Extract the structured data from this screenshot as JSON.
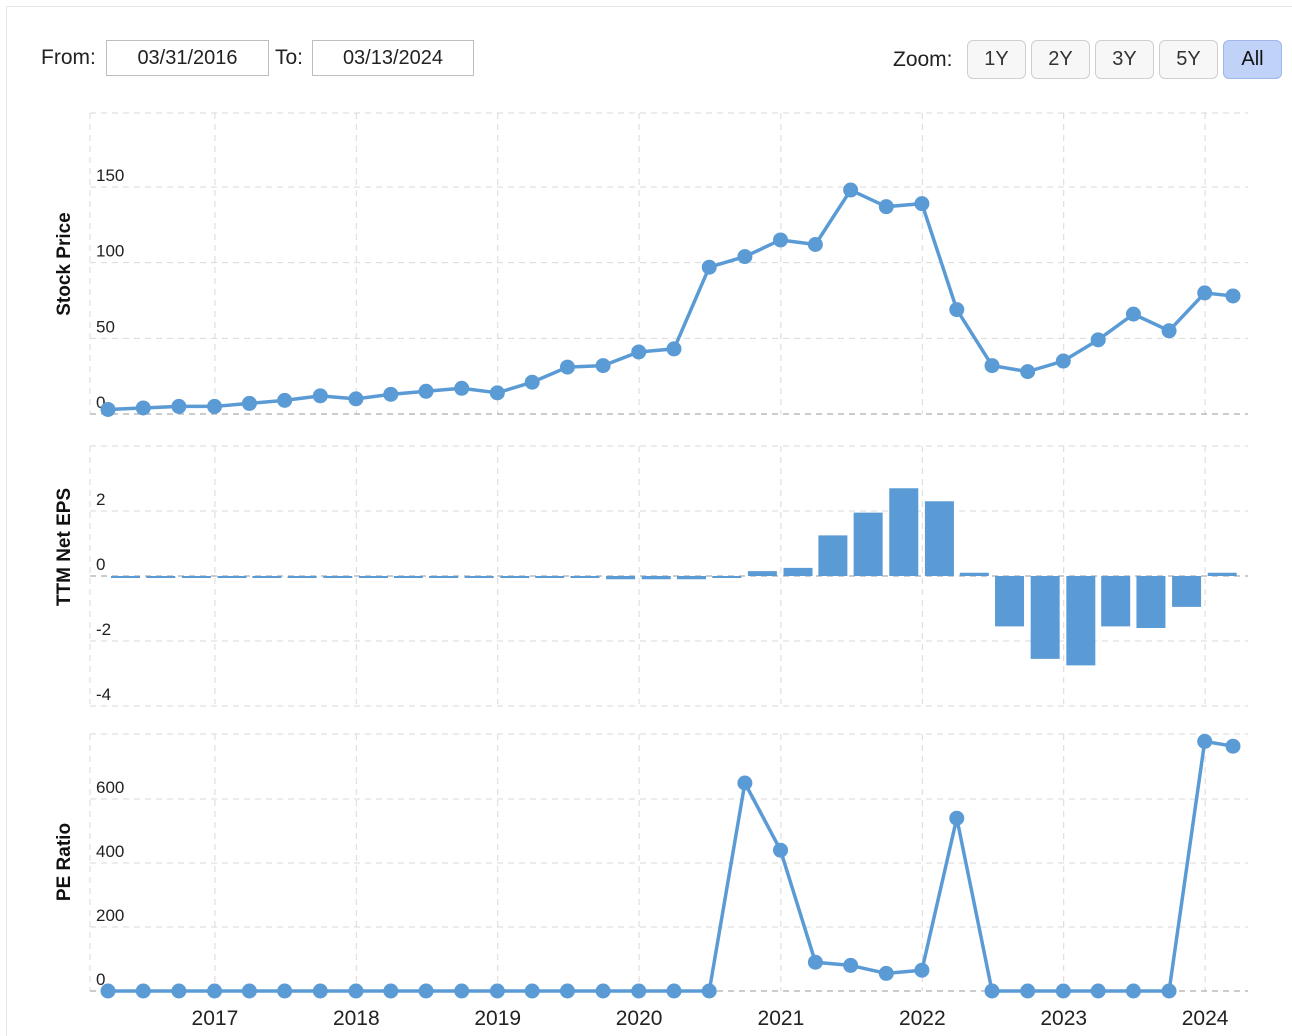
{
  "controls": {
    "from_label": "From:",
    "from_value": "03/31/2016",
    "to_label": "To:",
    "to_value": "03/13/2024",
    "zoom_label": "Zoom:",
    "zoom_options": [
      "1Y",
      "2Y",
      "3Y",
      "5Y",
      "All"
    ],
    "zoom_active": "All"
  },
  "colors": {
    "series": "#5b9bd5",
    "grid": "#d9d9d9",
    "zero_line": "#999999"
  },
  "chart_data": [
    {
      "type": "line",
      "ylabel": "Stock Price",
      "yticks": [
        "0",
        "50",
        "100",
        "150"
      ],
      "ylim": [
        0,
        175
      ],
      "xticks": [
        "2017",
        "2018",
        "2019",
        "2020",
        "2021",
        "2022",
        "2023",
        "2024"
      ],
      "x": [
        "2016-03-31",
        "2016-06-30",
        "2016-09-30",
        "2016-12-31",
        "2017-03-31",
        "2017-06-30",
        "2017-09-30",
        "2017-12-31",
        "2018-03-31",
        "2018-06-30",
        "2018-09-30",
        "2018-12-31",
        "2019-03-31",
        "2019-06-30",
        "2019-09-30",
        "2019-12-31",
        "2020-03-31",
        "2020-06-30",
        "2020-09-30",
        "2020-12-31",
        "2021-03-31",
        "2021-06-30",
        "2021-09-30",
        "2021-12-31",
        "2022-03-31",
        "2022-06-30",
        "2022-09-30",
        "2022-12-31",
        "2023-03-31",
        "2023-06-30",
        "2023-09-30",
        "2023-12-31",
        "2024-03-13"
      ],
      "values": [
        3,
        4,
        5,
        5,
        7,
        9,
        12,
        10,
        13,
        15,
        17,
        14,
        21,
        31,
        32,
        41,
        43,
        97,
        104,
        115,
        112,
        148,
        137,
        139,
        69,
        32,
        28,
        35,
        49,
        66,
        55,
        80,
        78
      ]
    },
    {
      "type": "bar",
      "ylabel": "TTM Net EPS",
      "yticks": [
        "-4",
        "-2",
        "0",
        "2"
      ],
      "ylim": [
        -4,
        3
      ],
      "x": [
        "2016-03-31",
        "2016-06-30",
        "2016-09-30",
        "2016-12-31",
        "2017-03-31",
        "2017-06-30",
        "2017-09-30",
        "2017-12-31",
        "2018-03-31",
        "2018-06-30",
        "2018-09-30",
        "2018-12-31",
        "2019-03-31",
        "2019-06-30",
        "2019-09-30",
        "2019-12-31",
        "2020-03-31",
        "2020-06-30",
        "2020-09-30",
        "2020-12-31",
        "2021-03-31",
        "2021-06-30",
        "2021-09-30",
        "2021-12-31",
        "2022-03-31",
        "2022-06-30",
        "2022-09-30",
        "2022-12-31",
        "2023-03-31",
        "2023-06-30",
        "2023-09-30",
        "2023-12-31"
      ],
      "values": [
        -0.05,
        -0.05,
        -0.05,
        -0.05,
        -0.05,
        -0.05,
        -0.05,
        -0.05,
        -0.05,
        -0.05,
        -0.05,
        -0.05,
        -0.05,
        -0.05,
        -0.1,
        -0.1,
        -0.1,
        -0.05,
        0.15,
        0.25,
        1.25,
        1.95,
        2.7,
        2.3,
        0.1,
        -1.55,
        -2.55,
        -2.75,
        -1.55,
        -1.6,
        -0.95,
        0.1
      ]
    },
    {
      "type": "line",
      "ylabel": "PE Ratio",
      "yticks": [
        "0",
        "200",
        "400",
        "600"
      ],
      "ylim": [
        0,
        800
      ],
      "x": [
        "2016-03-31",
        "2016-06-30",
        "2016-09-30",
        "2016-12-31",
        "2017-03-31",
        "2017-06-30",
        "2017-09-30",
        "2017-12-31",
        "2018-03-31",
        "2018-06-30",
        "2018-09-30",
        "2018-12-31",
        "2019-03-31",
        "2019-06-30",
        "2019-09-30",
        "2019-12-31",
        "2020-03-31",
        "2020-06-30",
        "2020-09-30",
        "2020-12-31",
        "2021-03-31",
        "2021-06-30",
        "2021-09-30",
        "2021-12-31",
        "2022-03-31",
        "2022-06-30",
        "2022-09-30",
        "2022-12-31",
        "2023-03-31",
        "2023-06-30",
        "2023-09-30",
        "2023-12-31",
        "2024-03-13"
      ],
      "values": [
        0,
        0,
        0,
        0,
        0,
        0,
        0,
        0,
        0,
        0,
        0,
        0,
        0,
        0,
        0,
        0,
        0,
        0,
        650,
        440,
        90,
        80,
        55,
        65,
        540,
        0,
        0,
        0,
        0,
        0,
        0,
        780,
        765
      ]
    }
  ]
}
